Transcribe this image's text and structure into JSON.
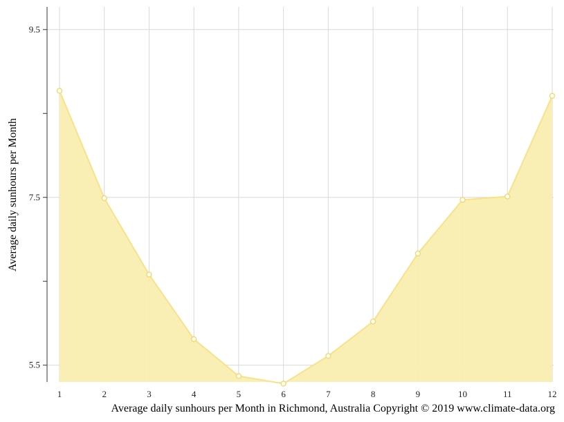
{
  "caption": "Average daily sunhours per Month in Richmond, Australia Copyright © 2019 www.climate-data.org",
  "chart_data": {
    "type": "area",
    "title": "",
    "xlabel": "",
    "ylabel": "Average daily sunhours per Month",
    "categories": [
      "1",
      "2",
      "3",
      "4",
      "5",
      "6",
      "7",
      "8",
      "9",
      "10",
      "11",
      "12"
    ],
    "series": [
      {
        "values": [
          8.77,
          7.49,
          6.58,
          5.81,
          5.37,
          5.28,
          5.61,
          6.02,
          6.83,
          7.47,
          7.51,
          8.71
        ]
      }
    ],
    "ylim": [
      5.3,
      9.77
    ],
    "yticks": [
      5.5,
      7.5,
      9.5
    ],
    "grid": true,
    "legend": "none",
    "colors": {
      "fill": "#f9eeb0",
      "line": "#f8e289",
      "marker": "#f0d860",
      "grid": "#d8d8d8",
      "axis": "#333333"
    }
  }
}
